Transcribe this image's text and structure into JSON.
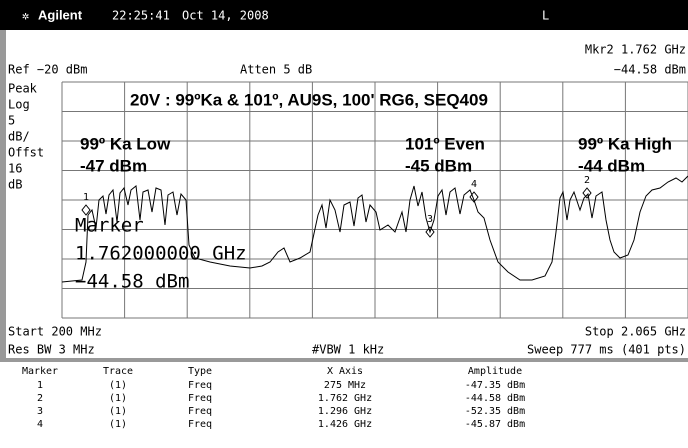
{
  "header": {
    "brand": "Agilent",
    "time": "22:25:41",
    "date": "Oct 14, 2008",
    "indicator": "L"
  },
  "readout": {
    "marker": "Mkr2 1.762 GHz",
    "amplitude": "−44.58 dBm"
  },
  "settings": {
    "ref": "Ref −20 dBm",
    "atten": "Atten 5 dB",
    "scale": [
      "Peak",
      "Log",
      "5",
      "dB/",
      "Offst",
      "16",
      "dB"
    ],
    "start": "Start 200 MHz",
    "stop": "Stop 2.065 GHz",
    "rbw": "Res BW 3 MHz",
    "vbw": "#VBW 1 kHz",
    "sweep": "Sweep 777 ms (401 pts)"
  },
  "annotations": {
    "title": "20V : 99ºKa & 101º, AU9S, 100' RG6, SEQ409",
    "labels": [
      {
        "name": "99º Ka Low",
        "level": "-47 dBm"
      },
      {
        "name": "101º Even",
        "level": "-45 dBm"
      },
      {
        "name": "99º Ka High",
        "level": "-44 dBm"
      }
    ]
  },
  "marker_box": [
    "Marker",
    "1.762000000 GHz",
    "−44.58 dBm"
  ],
  "marker_ids": [
    "1",
    "2",
    "3",
    "4"
  ],
  "table": {
    "columns": [
      "Marker",
      "Trace",
      "Type",
      "X Axis",
      "Amplitude"
    ],
    "rows": [
      [
        "1",
        "(1)",
        "Freq",
        "275 MHz",
        "-47.35 dBm"
      ],
      [
        "2",
        "(1)",
        "Freq",
        "1.762 GHz",
        "-44.58 dBm"
      ],
      [
        "3",
        "(1)",
        "Freq",
        "1.296 GHz",
        "-52.35 dBm"
      ],
      [
        "4",
        "(1)",
        "Freq",
        "1.426 GHz",
        "-45.87 dBm"
      ]
    ]
  }
}
